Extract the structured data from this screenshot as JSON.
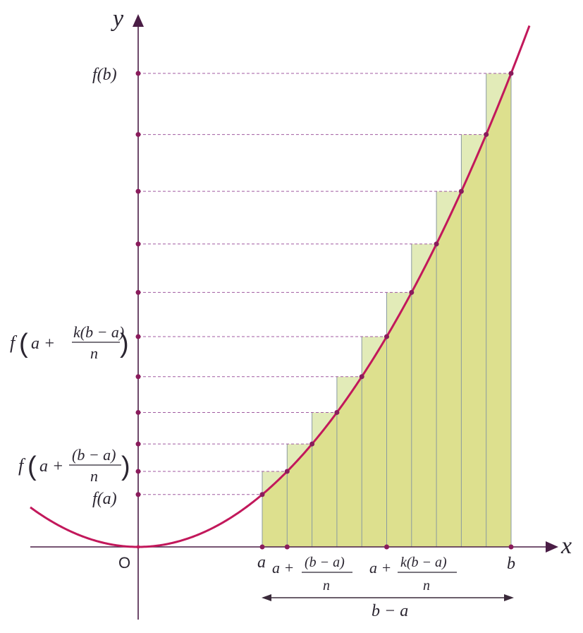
{
  "axes": {
    "x_label": "x",
    "y_label": "y",
    "origin_label": "O"
  },
  "y_labels": {
    "f_b": "f(b)",
    "f_a": "f(a)",
    "f_k_prefix": "f",
    "f_k_inner": "a +",
    "f_k_num": "k(b − a)",
    "f_k_den": "n",
    "f_1_prefix": "f",
    "f_1_inner": "a +",
    "f_1_num": "(b − a)",
    "f_1_den": "n"
  },
  "x_labels": {
    "a": "a",
    "b": "b",
    "step1_inner": "a +",
    "step1_num": "(b − a)",
    "step1_den": "n",
    "stepk_inner": "a +",
    "stepk_num": "k(b − a)",
    "stepk_den": "n"
  },
  "width_label": "b − a",
  "intervals": 10,
  "colors": {
    "curve": "#c2185b",
    "axis": "#4a1d45",
    "dot": "#8a1c5c",
    "dashed": "#a05aa0",
    "fill_under": "#dde08e",
    "fill_over": "#e2ebb8",
    "rect_edge": "#8a9aa0"
  }
}
